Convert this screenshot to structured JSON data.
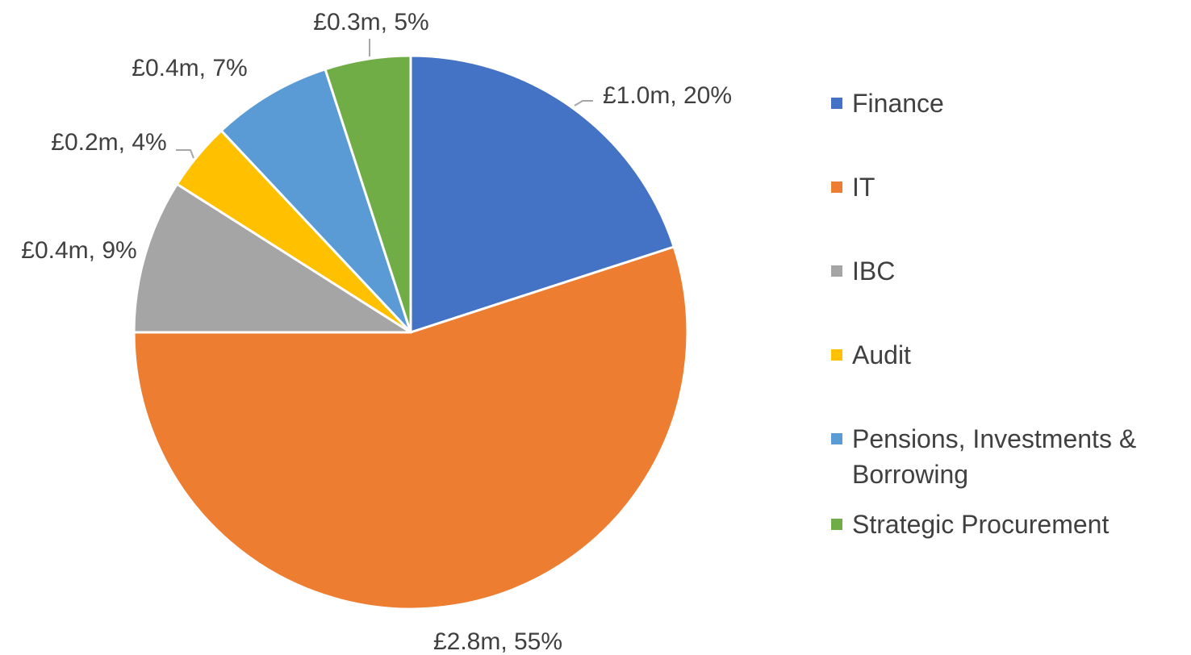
{
  "chart_data": {
    "type": "pie",
    "categories": [
      "Finance",
      "IT",
      "IBC",
      "Audit",
      "Pensions, Investments & Borrowing",
      "Strategic Procurement"
    ],
    "values": [
      20,
      55,
      9,
      4,
      7,
      5
    ],
    "value_labels": [
      "£1.0m, 20%",
      "£2.8m, 55%",
      "£0.4m, 9%",
      "£0.2m, 4%",
      "£0.4m, 7%",
      "£0.3m, 5%"
    ],
    "colors": [
      "#4472c4",
      "#ed7d31",
      "#a5a5a5",
      "#ffc000",
      "#5b9bd5",
      "#70ad47"
    ],
    "legend": "right"
  }
}
